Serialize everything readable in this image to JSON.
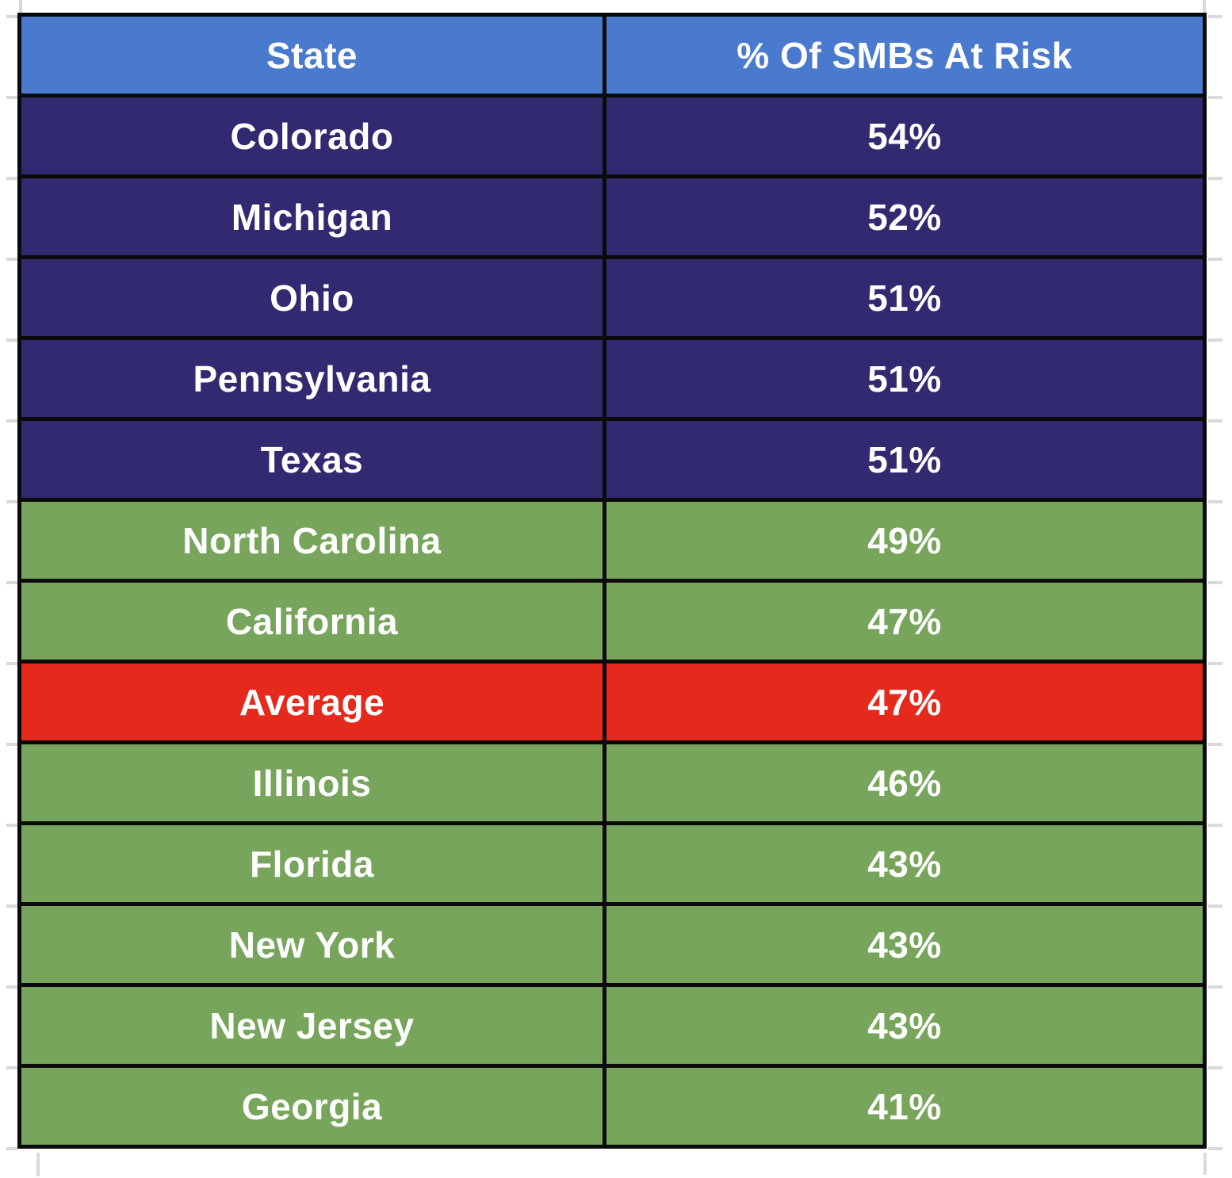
{
  "table": {
    "columns": [
      "State",
      "% Of SMBs At Risk"
    ],
    "rows": [
      {
        "state": "Colorado",
        "value": "54%",
        "category": "navy"
      },
      {
        "state": "Michigan",
        "value": "52%",
        "category": "navy"
      },
      {
        "state": "Ohio",
        "value": "51%",
        "category": "navy"
      },
      {
        "state": "Pennsylvania",
        "value": "51%",
        "category": "navy"
      },
      {
        "state": "Texas",
        "value": "51%",
        "category": "navy"
      },
      {
        "state": "North Carolina",
        "value": "49%",
        "category": "green"
      },
      {
        "state": "California",
        "value": "47%",
        "category": "green"
      },
      {
        "state": "Average",
        "value": "47%",
        "category": "red"
      },
      {
        "state": "Illinois",
        "value": "46%",
        "category": "green"
      },
      {
        "state": "Florida",
        "value": "43%",
        "category": "green"
      },
      {
        "state": "New York",
        "value": "43%",
        "category": "green"
      },
      {
        "state": "New Jersey",
        "value": "43%",
        "category": "green"
      },
      {
        "state": "Georgia",
        "value": "41%",
        "category": "green"
      }
    ]
  },
  "colors": {
    "header_bg": "#4a7ace",
    "navy_bg": "#322a70",
    "green_bg": "#78a55c",
    "red_bg": "#e5291c",
    "border_color": "#0a0a0a",
    "text_color": "#ffffff",
    "gridline_color": "#d9d9d9"
  },
  "chart_data": {
    "type": "table",
    "title": "",
    "columns": [
      "State",
      "% Of SMBs At Risk"
    ],
    "rows": [
      [
        "Colorado",
        54
      ],
      [
        "Michigan",
        52
      ],
      [
        "Ohio",
        51
      ],
      [
        "Pennsylvania",
        51
      ],
      [
        "Texas",
        51
      ],
      [
        "North Carolina",
        49
      ],
      [
        "California",
        47
      ],
      [
        "Average",
        47
      ],
      [
        "Illinois",
        46
      ],
      [
        "Florida",
        43
      ],
      [
        "New York",
        43
      ],
      [
        "New Jersey",
        43
      ],
      [
        "Georgia",
        41
      ]
    ],
    "notes": "Rows above average shaded dark navy, rows at/below average shaded green, average row shaded red; header row shaded medium blue; white bold text; thick black borders; faint spreadsheet gridline stubs visible outside the table"
  }
}
